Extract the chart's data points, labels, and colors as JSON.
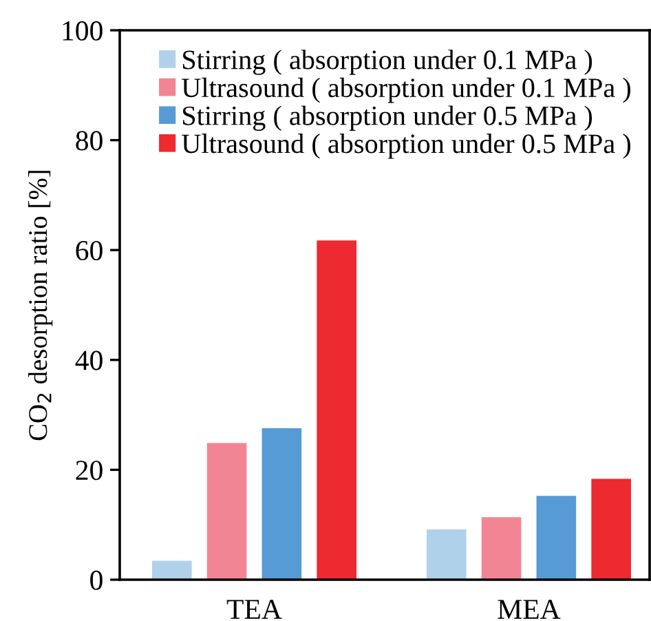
{
  "chart_data": {
    "type": "bar",
    "ylabel": "CO$_{2}$ desorption ratio [%]",
    "categories": [
      "TEA",
      "MEA"
    ],
    "series": [
      {
        "name": "Stirring ( absorption under 0.1 MPa )",
        "color": "#b0d1ea",
        "values": [
          3.6,
          9.3
        ]
      },
      {
        "name": "Ultrasound ( absorption under 0.1 MPa )",
        "color": "#f28593",
        "values": [
          25.0,
          11.5
        ]
      },
      {
        "name": "Stirring ( absorption under 0.5 MPa )",
        "color": "#569bd6",
        "values": [
          27.7,
          15.4
        ]
      },
      {
        "name": "Ultrasound ( absorption under 0.5 MPa )",
        "color": "#ec2a2f",
        "values": [
          61.9,
          18.5
        ]
      }
    ],
    "ylim": [
      0,
      100
    ],
    "yticks": [
      0,
      20,
      40,
      60,
      80,
      100
    ],
    "grid": false,
    "legend": "top"
  }
}
